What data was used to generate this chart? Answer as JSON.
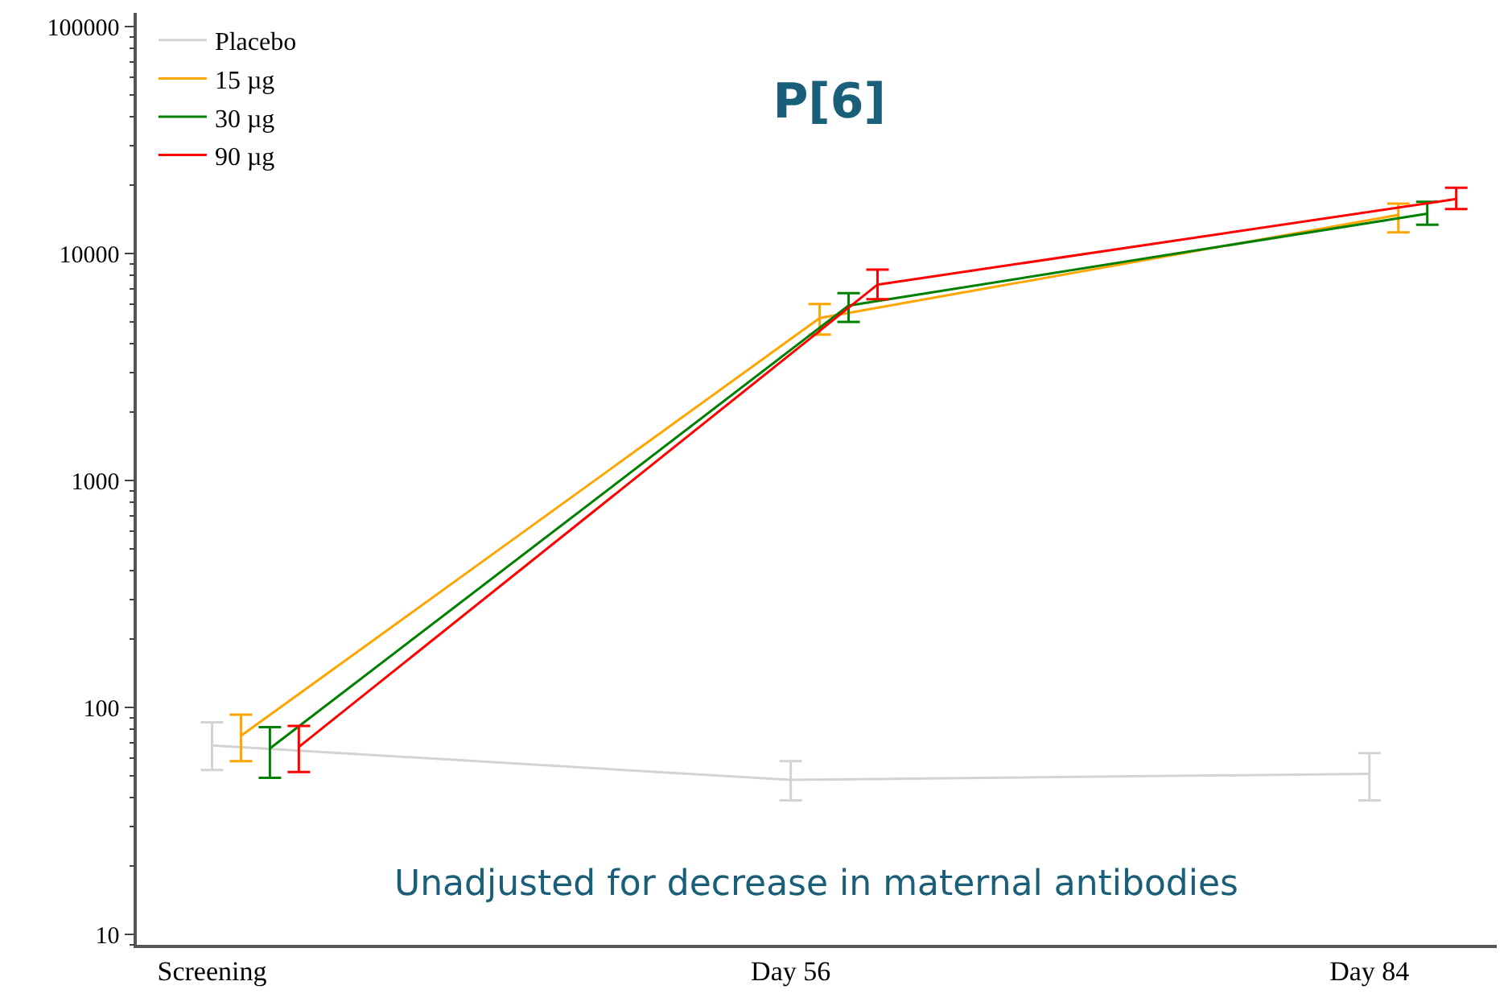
{
  "chart_data": {
    "type": "line",
    "title": "P[6]",
    "categories": [
      "Screening",
      "Day 56",
      "Day 84"
    ],
    "series": [
      {
        "name": "Placebo",
        "color": "#d3d3d3",
        "values": [
          68,
          48,
          51
        ],
        "errors": [
          [
            53,
            86
          ],
          [
            39,
            58
          ],
          [
            39,
            63
          ]
        ]
      },
      {
        "name": "15 µg",
        "color": "#ffa500",
        "values": [
          75,
          5200,
          14800
        ],
        "errors": [
          [
            58,
            93
          ],
          [
            4400,
            6000
          ],
          [
            12400,
            16600
          ]
        ]
      },
      {
        "name": "30 µg",
        "color": "#008000",
        "values": [
          66,
          5900,
          15000
        ],
        "errors": [
          [
            49,
            82
          ],
          [
            5000,
            6700
          ],
          [
            13400,
            16900
          ]
        ]
      },
      {
        "name": "90 µg",
        "color": "#ff0000",
        "values": [
          67,
          7300,
          17400
        ],
        "errors": [
          [
            52,
            83
          ],
          [
            6300,
            8500
          ],
          [
            15700,
            19500
          ]
        ]
      }
    ],
    "ylim": [
      9,
      115000
    ],
    "yticks": [
      10,
      100,
      1000,
      10000,
      100000
    ],
    "log": "y",
    "legend": "top left",
    "line_style": "solid",
    "annotations": [
      "Unadjusted for decrease in maternal antibodies"
    ]
  }
}
